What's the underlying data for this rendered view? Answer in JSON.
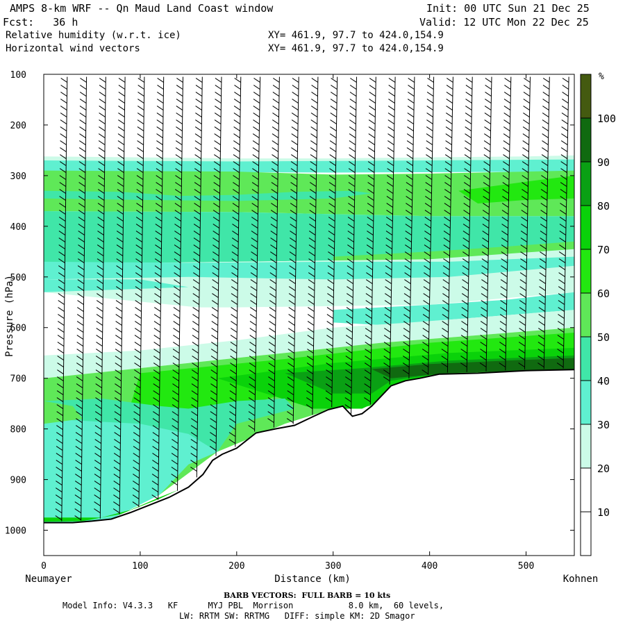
{
  "header": {
    "line1_left": "AMPS 8-km WRF -- Qn Maud Land Coast window",
    "line1_right": "Init: 00 UTC Sun 21 Dec 25",
    "line2_left": "Fcst:   36 h",
    "line2_right": "Valid: 12 UTC Mon 22 Dec 25",
    "line3_left": "Relative humidity (w.r.t. ice)",
    "line3_right": "XY= 461.9, 97.7 to 424.0,154.9",
    "line4_left": "Horizontal wind vectors",
    "line4_right": "XY= 461.9, 97.7 to 424.0,154.9"
  },
  "footer": {
    "barb": "BARB VECTORS:  FULL BARB = 10 kts",
    "model1": "Model Info: V4.3.3   KF      MYJ PBL  Morrison           8.0 km,  60 levels,",
    "model2": "LW: RRTM SW: RRTMG   DIFF: simple KM: 2D Smagor"
  },
  "colors": {
    "c0": "#ffffff",
    "c30": "#ccfbe8",
    "c40": "#5ff0d0",
    "c50": "#40e6a8",
    "c60": "#5fe858",
    "c70": "#22e810",
    "c80": "#0ad20a",
    "c90": "#0aa014",
    "c100": "#106a10",
    "c110": "#445a10",
    "terrain": "#ffffff"
  },
  "chart_data": {
    "type": "cross-section",
    "title": "Relative humidity (w.r.t. ice) and horizontal wind vectors",
    "xlabel": "Distance (km)",
    "ylabel": "Pressure (hPa)",
    "xlim": [
      0,
      550
    ],
    "ylim": [
      1050,
      100
    ],
    "x_ticks": [
      0,
      100,
      200,
      300,
      400,
      500
    ],
    "y_ticks": [
      100,
      200,
      300,
      400,
      500,
      600,
      700,
      800,
      900,
      1000
    ],
    "left_label": "Neumayer",
    "right_label": "Kohnen",
    "colorbar": {
      "unit": "%",
      "levels": [
        10,
        20,
        30,
        40,
        50,
        60,
        70,
        80,
        90,
        100
      ]
    },
    "terrain_surface": {
      "distance_km": [
        0,
        30,
        50,
        70,
        90,
        110,
        130,
        150,
        165,
        175,
        185,
        200,
        220,
        240,
        260,
        280,
        295,
        310,
        320,
        330,
        340,
        350,
        360,
        375,
        390,
        410,
        450,
        500,
        550
      ],
      "pressure_hPa": [
        985,
        985,
        982,
        978,
        965,
        950,
        935,
        915,
        890,
        862,
        850,
        838,
        808,
        800,
        793,
        775,
        762,
        755,
        775,
        770,
        755,
        735,
        715,
        705,
        700,
        692,
        690,
        685,
        683
      ]
    },
    "rh_bands": [
      {
        "from_hPa": 100,
        "to_hPa": 265,
        "rh": "<30"
      },
      {
        "from_hPa": 265,
        "to_hPa": 320,
        "rh": "40-60"
      },
      {
        "from_hPa": 320,
        "to_hPa": 370,
        "rh": "60-80"
      },
      {
        "from_hPa": 370,
        "to_hPa": 480,
        "rh": "50-70"
      },
      {
        "from_hPa": 480,
        "to_hPa": 560,
        "rh": "30-50"
      },
      {
        "from_hPa": 560,
        "to_hPa": 650,
        "rh": "<30"
      },
      {
        "from_hPa": 650,
        "to_hPa": 760,
        "rh": "60-90"
      },
      {
        "from_hPa": 760,
        "to_hPa": 1000,
        "rh": "40-70"
      }
    ],
    "wind_barb_spacing_km": 20
  }
}
